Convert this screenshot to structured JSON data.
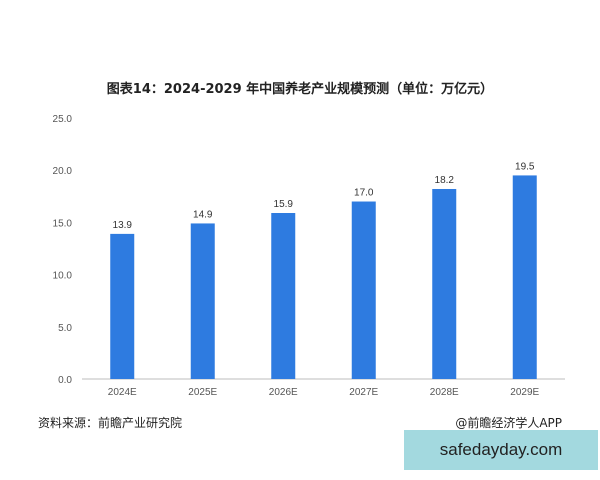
{
  "chart_data": {
    "type": "bar",
    "title": "图表14：2024-2029 年中国养老产业规模预测（单位：万亿元）",
    "categories": [
      "2024E",
      "2025E",
      "2026E",
      "2027E",
      "2028E",
      "2029E"
    ],
    "values": [
      13.9,
      14.9,
      15.9,
      17.0,
      18.2,
      19.5
    ],
    "value_labels": [
      "13.9",
      "14.9",
      "15.9",
      "17.0",
      "18.2",
      "19.5"
    ],
    "ylim": [
      0,
      25
    ],
    "yticks": [
      "0.0",
      "5.0",
      "10.0",
      "15.0",
      "20.0",
      "25.0"
    ],
    "xlabel": "",
    "ylabel": "",
    "grid": false,
    "bar_color": "#2e7be0"
  },
  "footer": {
    "source": "资料来源：前瞻产业研究院",
    "credit": "@前瞻经济学人APP"
  },
  "watermark": {
    "text": "safedayday.com"
  }
}
